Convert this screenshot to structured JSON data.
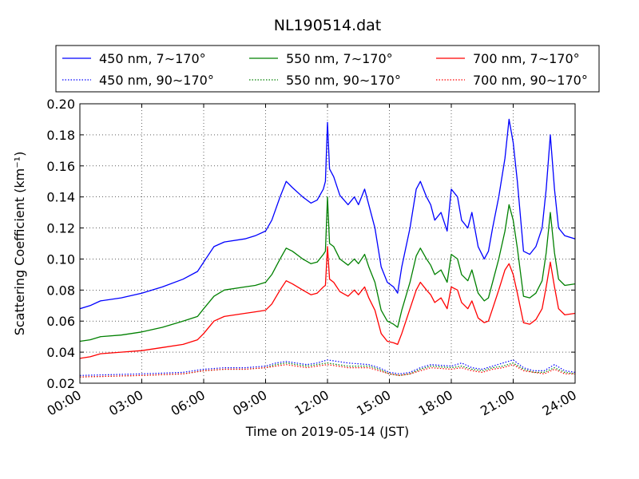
{
  "chart_data": {
    "type": "line",
    "title": "NL190514.dat",
    "xlabel": "Time on 2019-05-14 (JST)",
    "ylabel": "Scattering Coefficient (km⁻¹)",
    "xlim": [
      0,
      24
    ],
    "ylim": [
      0.02,
      0.2
    ],
    "x_ticks": [
      0,
      3,
      6,
      9,
      12,
      15,
      18,
      21,
      24
    ],
    "x_tick_labels": [
      "00:00",
      "03:00",
      "06:00",
      "09:00",
      "12:00",
      "15:00",
      "18:00",
      "21:00",
      "24:00"
    ],
    "y_ticks": [
      0.02,
      0.04,
      0.06,
      0.08,
      0.1,
      0.12,
      0.14,
      0.16,
      0.18,
      0.2
    ],
    "y_tick_labels": [
      "0.02",
      "0.04",
      "0.06",
      "0.08",
      "0.10",
      "0.12",
      "0.14",
      "0.16",
      "0.18",
      "0.20"
    ],
    "grid": true,
    "legend_position": "top",
    "series": [
      {
        "name": "450 nm, 7∼170°",
        "color": "#0000ff",
        "style": "solid",
        "x": [
          0,
          0.5,
          1,
          2,
          3,
          4,
          5,
          5.7,
          6,
          6.5,
          7,
          8,
          8.5,
          9,
          9.3,
          9.7,
          10,
          10.3,
          10.8,
          11.2,
          11.5,
          11.8,
          11.9,
          12.0,
          12.1,
          12.3,
          12.6,
          13.0,
          13.3,
          13.5,
          13.8,
          14.0,
          14.3,
          14.6,
          14.9,
          15.2,
          15.4,
          15.6,
          16.0,
          16.3,
          16.5,
          16.8,
          17.0,
          17.2,
          17.5,
          17.8,
          18.0,
          18.3,
          18.5,
          18.8,
          19.0,
          19.3,
          19.6,
          19.8,
          20.0,
          20.3,
          20.6,
          20.8,
          21.0,
          21.2,
          21.5,
          21.8,
          22.1,
          22.4,
          22.6,
          22.8,
          23.0,
          23.2,
          23.5,
          24.0
        ],
        "y": [
          0.068,
          0.07,
          0.073,
          0.075,
          0.078,
          0.082,
          0.087,
          0.092,
          0.098,
          0.108,
          0.111,
          0.113,
          0.115,
          0.118,
          0.125,
          0.14,
          0.15,
          0.146,
          0.14,
          0.136,
          0.138,
          0.145,
          0.15,
          0.188,
          0.158,
          0.153,
          0.141,
          0.135,
          0.14,
          0.135,
          0.145,
          0.135,
          0.12,
          0.095,
          0.085,
          0.082,
          0.078,
          0.095,
          0.12,
          0.145,
          0.15,
          0.14,
          0.135,
          0.125,
          0.13,
          0.118,
          0.145,
          0.14,
          0.125,
          0.12,
          0.13,
          0.108,
          0.1,
          0.105,
          0.12,
          0.14,
          0.165,
          0.19,
          0.175,
          0.15,
          0.105,
          0.103,
          0.108,
          0.12,
          0.145,
          0.18,
          0.145,
          0.12,
          0.115,
          0.113
        ]
      },
      {
        "name": "550 nm, 7∼170°",
        "color": "#008000",
        "style": "solid",
        "x": [
          0,
          0.5,
          1,
          2,
          3,
          4,
          5,
          5.7,
          6,
          6.5,
          7,
          8,
          8.5,
          9,
          9.3,
          9.7,
          10,
          10.3,
          10.8,
          11.2,
          11.5,
          11.8,
          11.9,
          12.0,
          12.1,
          12.3,
          12.6,
          13.0,
          13.3,
          13.5,
          13.8,
          14.0,
          14.3,
          14.6,
          14.9,
          15.2,
          15.4,
          15.6,
          16.0,
          16.3,
          16.5,
          16.8,
          17.0,
          17.2,
          17.5,
          17.8,
          18.0,
          18.3,
          18.5,
          18.8,
          19.0,
          19.3,
          19.6,
          19.8,
          20.0,
          20.3,
          20.6,
          20.8,
          21.0,
          21.2,
          21.5,
          21.8,
          22.1,
          22.4,
          22.6,
          22.8,
          23.0,
          23.2,
          23.5,
          24.0
        ],
        "y": [
          0.047,
          0.048,
          0.05,
          0.051,
          0.053,
          0.056,
          0.06,
          0.063,
          0.068,
          0.076,
          0.08,
          0.082,
          0.083,
          0.085,
          0.09,
          0.1,
          0.107,
          0.105,
          0.1,
          0.097,
          0.098,
          0.103,
          0.105,
          0.14,
          0.11,
          0.108,
          0.1,
          0.096,
          0.1,
          0.097,
          0.103,
          0.095,
          0.085,
          0.067,
          0.06,
          0.058,
          0.056,
          0.067,
          0.085,
          0.102,
          0.107,
          0.1,
          0.096,
          0.09,
          0.093,
          0.085,
          0.103,
          0.1,
          0.09,
          0.086,
          0.093,
          0.078,
          0.073,
          0.075,
          0.085,
          0.1,
          0.118,
          0.135,
          0.125,
          0.107,
          0.076,
          0.075,
          0.078,
          0.086,
          0.104,
          0.13,
          0.104,
          0.087,
          0.083,
          0.084
        ]
      },
      {
        "name": "700 nm, 7∼170°",
        "color": "#ff0000",
        "style": "solid",
        "x": [
          0,
          0.5,
          1,
          2,
          3,
          4,
          5,
          5.7,
          6,
          6.5,
          7,
          8,
          8.5,
          9,
          9.3,
          9.7,
          10,
          10.3,
          10.8,
          11.2,
          11.5,
          11.8,
          11.9,
          12.0,
          12.1,
          12.3,
          12.6,
          13.0,
          13.3,
          13.5,
          13.8,
          14.0,
          14.3,
          14.6,
          14.9,
          15.2,
          15.4,
          15.6,
          16.0,
          16.3,
          16.5,
          16.8,
          17.0,
          17.2,
          17.5,
          17.8,
          18.0,
          18.3,
          18.5,
          18.8,
          19.0,
          19.3,
          19.6,
          19.8,
          20.0,
          20.3,
          20.6,
          20.8,
          21.0,
          21.2,
          21.5,
          21.8,
          22.1,
          22.4,
          22.6,
          22.8,
          23.0,
          23.2,
          23.5,
          24.0
        ],
        "y": [
          0.036,
          0.037,
          0.039,
          0.04,
          0.041,
          0.043,
          0.045,
          0.048,
          0.052,
          0.06,
          0.063,
          0.065,
          0.066,
          0.067,
          0.071,
          0.08,
          0.086,
          0.084,
          0.08,
          0.077,
          0.078,
          0.082,
          0.083,
          0.108,
          0.087,
          0.085,
          0.079,
          0.076,
          0.08,
          0.077,
          0.082,
          0.075,
          0.067,
          0.052,
          0.047,
          0.046,
          0.045,
          0.052,
          0.068,
          0.08,
          0.085,
          0.08,
          0.077,
          0.072,
          0.075,
          0.068,
          0.082,
          0.08,
          0.072,
          0.068,
          0.073,
          0.062,
          0.059,
          0.06,
          0.068,
          0.08,
          0.093,
          0.097,
          0.09,
          0.078,
          0.059,
          0.058,
          0.061,
          0.068,
          0.082,
          0.098,
          0.082,
          0.068,
          0.064,
          0.065
        ]
      },
      {
        "name": "450 nm, 90∼170°",
        "color": "#0000ff",
        "style": "dotted",
        "x": [
          0,
          3,
          5,
          6,
          7,
          8,
          9,
          9.5,
          10,
          11,
          11.5,
          12,
          12.5,
          13,
          14,
          14.5,
          15,
          15.5,
          16,
          16.5,
          17,
          18,
          18.5,
          19,
          19.5,
          20,
          20.5,
          21,
          21.5,
          22,
          22.5,
          23,
          23.5,
          24
        ],
        "y": [
          0.025,
          0.026,
          0.027,
          0.029,
          0.03,
          0.03,
          0.031,
          0.033,
          0.034,
          0.032,
          0.033,
          0.035,
          0.034,
          0.033,
          0.032,
          0.03,
          0.027,
          0.026,
          0.027,
          0.03,
          0.032,
          0.031,
          0.033,
          0.03,
          0.029,
          0.031,
          0.033,
          0.035,
          0.03,
          0.028,
          0.028,
          0.032,
          0.028,
          0.027
        ]
      },
      {
        "name": "550 nm, 90∼170°",
        "color": "#008000",
        "style": "dotted",
        "x": [
          0,
          3,
          5,
          6,
          7,
          8,
          9,
          9.5,
          10,
          11,
          11.5,
          12,
          12.5,
          13,
          14,
          14.5,
          15,
          15.5,
          16,
          16.5,
          17,
          18,
          18.5,
          19,
          19.5,
          20,
          20.5,
          21,
          21.5,
          22,
          22.5,
          23,
          23.5,
          24
        ],
        "y": [
          0.024,
          0.025,
          0.026,
          0.028,
          0.029,
          0.029,
          0.03,
          0.032,
          0.033,
          0.031,
          0.032,
          0.033,
          0.032,
          0.031,
          0.031,
          0.029,
          0.026,
          0.025,
          0.026,
          0.029,
          0.031,
          0.03,
          0.031,
          0.029,
          0.028,
          0.03,
          0.031,
          0.033,
          0.029,
          0.027,
          0.027,
          0.03,
          0.027,
          0.026
        ]
      },
      {
        "name": "700 nm, 90∼170°",
        "color": "#ff0000",
        "style": "dotted",
        "x": [
          0,
          3,
          5,
          6,
          7,
          8,
          9,
          9.5,
          10,
          11,
          11.5,
          12,
          12.5,
          13,
          14,
          14.5,
          15,
          15.5,
          16,
          16.5,
          17,
          18,
          18.5,
          19,
          19.5,
          20,
          20.5,
          21,
          21.5,
          22,
          22.5,
          23,
          23.5,
          24
        ],
        "y": [
          0.024,
          0.025,
          0.026,
          0.028,
          0.029,
          0.029,
          0.03,
          0.031,
          0.032,
          0.03,
          0.031,
          0.032,
          0.031,
          0.03,
          0.03,
          0.028,
          0.026,
          0.025,
          0.026,
          0.028,
          0.03,
          0.029,
          0.03,
          0.028,
          0.027,
          0.029,
          0.03,
          0.032,
          0.028,
          0.027,
          0.026,
          0.029,
          0.026,
          0.026
        ]
      }
    ]
  }
}
